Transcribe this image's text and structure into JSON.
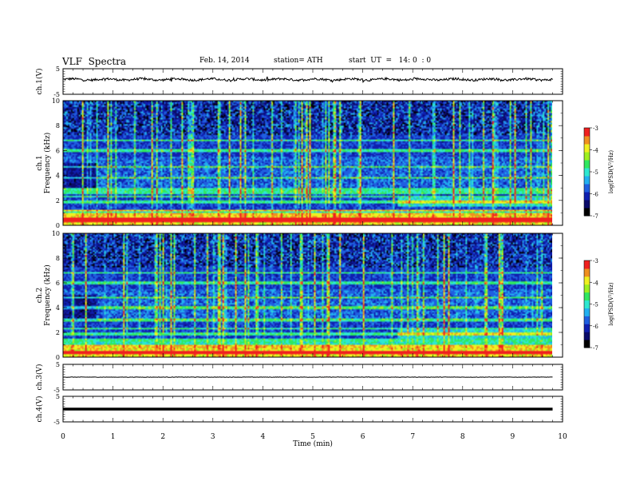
{
  "header": {
    "title": "VLF  Spectra",
    "date": "Feb. 14, 2014",
    "station": "station= ATH",
    "start": "start  UT  =   14: 0  : 0"
  },
  "colors": {
    "colormap": [
      "#000000",
      "#0b0b6a",
      "#0f1fb0",
      "#1f5fe0",
      "#22b0f0",
      "#2ee8d0",
      "#30e860",
      "#9ef020",
      "#f0f020",
      "#f09020",
      "#f02020",
      "#ffffff"
    ]
  },
  "chart_data": [
    {
      "type": "line",
      "name": "ch1-waveform",
      "ylabel": "ch.1(V)",
      "ylim": [
        -5,
        5
      ],
      "yticks": [
        "5",
        "-5"
      ],
      "xlim": [
        0,
        10
      ],
      "level": 0.8,
      "noise": "small-fluctuation"
    },
    {
      "type": "heatmap",
      "name": "ch1-spectrogram",
      "ylabel": "Frequency  (kHz)",
      "channel_label": "ch.1",
      "ylim": [
        0,
        10
      ],
      "yticks": [
        "0",
        "2",
        "4",
        "6",
        "8",
        "10"
      ],
      "xlim": [
        0,
        9.8
      ],
      "colorbar": {
        "label": "log(PSD(V²/Hz)",
        "range": [
          -7,
          -3
        ],
        "ticks": [
          "-3",
          "-4",
          "-5",
          "-6",
          "-7"
        ]
      },
      "bands_khz": [
        0.3,
        0.5,
        0.9,
        1.2,
        1.9,
        2.3,
        2.6,
        2.9,
        3.8,
        4.7,
        6.0,
        6.8
      ],
      "step_times_min": [
        0.65,
        6.7
      ]
    },
    {
      "type": "heatmap",
      "name": "ch2-spectrogram",
      "ylabel": "Frequency  (kHz)",
      "channel_label": "ch.2",
      "ylim": [
        0,
        10
      ],
      "yticks": [
        "0",
        "2",
        "4",
        "6",
        "8",
        "10"
      ],
      "xlim": [
        0,
        9.8
      ],
      "colorbar": {
        "label": "log(PSD(V²/Hz)",
        "range": [
          -7,
          -3
        ],
        "ticks": [
          "-3",
          "-4",
          "-5",
          "-6",
          "-7"
        ]
      },
      "bands_khz": [
        0.4,
        0.9,
        1.4,
        1.9,
        2.3,
        3.0,
        4.0,
        4.8,
        6.0,
        6.8
      ],
      "step_times_min": [
        0.65,
        6.7
      ]
    },
    {
      "type": "line",
      "name": "ch3-waveform",
      "ylabel": "ch.3(V)",
      "ylim": [
        -5,
        5
      ],
      "yticks": [
        "5",
        "-5"
      ],
      "xlim": [
        0,
        10
      ],
      "level": 0.0
    },
    {
      "type": "line",
      "name": "ch4-waveform",
      "ylabel": "ch.4(V)",
      "ylim": [
        -5,
        5
      ],
      "yticks": [
        "5",
        "-5"
      ],
      "xlim": [
        0,
        10
      ],
      "level": 0.0
    }
  ],
  "xaxis": {
    "label": "Time  (min)",
    "ticks": [
      "0",
      "1",
      "2",
      "3",
      "4",
      "5",
      "6",
      "7",
      "8",
      "9",
      "10"
    ]
  }
}
